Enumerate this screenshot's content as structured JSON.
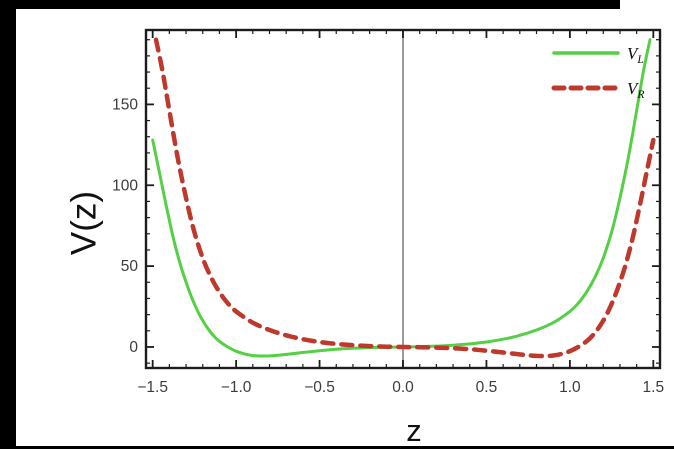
{
  "colors": {
    "background": "#ffffff",
    "letterbox": "#000000",
    "frame": "#1c1c1c",
    "tick_label": "#3d3d3d",
    "zero_line": "#8f8f8f",
    "vl_green": "#55cf45",
    "vr_red": "#be382c"
  },
  "chart_data": {
    "type": "line",
    "title": "",
    "xlabel": "z",
    "ylabel": "V(z)",
    "xlim": [
      -1.54,
      1.54
    ],
    "ylim": [
      -13,
      196
    ],
    "x_ticks": [
      -1.5,
      -1.0,
      -0.5,
      0.0,
      0.5,
      1.0,
      1.5
    ],
    "x_tick_labels": [
      "−1.5",
      "−1.0",
      "−0.5",
      "0.0",
      "0.5",
      "1.0",
      "1.5"
    ],
    "y_ticks": [
      0,
      50,
      100,
      150
    ],
    "y_tick_labels": [
      "0",
      "50",
      "100",
      "150"
    ],
    "x_minor_step": 0.1,
    "y_minor_step": 10,
    "grid": false,
    "frame": true,
    "zero_axis_line_x": 0.0,
    "legend_position": "top-right",
    "series": [
      {
        "name": "V_L",
        "label_main": "V",
        "label_sub": "L",
        "color": "#55cf45",
        "style": "solid",
        "points": [
          [
            -1.5,
            128
          ],
          [
            -1.46,
            108
          ],
          [
            -1.42,
            88
          ],
          [
            -1.38,
            69
          ],
          [
            -1.34,
            53
          ],
          [
            -1.3,
            40
          ],
          [
            -1.26,
            29
          ],
          [
            -1.22,
            20
          ],
          [
            -1.18,
            13
          ],
          [
            -1.14,
            7.5
          ],
          [
            -1.1,
            3.5
          ],
          [
            -1.05,
            0
          ],
          [
            -1.0,
            -2.6
          ],
          [
            -0.95,
            -4.3
          ],
          [
            -0.9,
            -5.3
          ],
          [
            -0.85,
            -5.6
          ],
          [
            -0.8,
            -5.5
          ],
          [
            -0.75,
            -5.1
          ],
          [
            -0.7,
            -4.6
          ],
          [
            -0.6,
            -3.4
          ],
          [
            -0.5,
            -2.3
          ],
          [
            -0.4,
            -1.4
          ],
          [
            -0.3,
            -0.8
          ],
          [
            -0.2,
            -0.4
          ],
          [
            -0.1,
            -0.15
          ],
          [
            0,
            0
          ],
          [
            0.1,
            0.2
          ],
          [
            0.2,
            0.55
          ],
          [
            0.3,
            1.1
          ],
          [
            0.4,
            1.9
          ],
          [
            0.5,
            3.1
          ],
          [
            0.6,
            4.8
          ],
          [
            0.7,
            7.2
          ],
          [
            0.8,
            10.5
          ],
          [
            0.9,
            15
          ],
          [
            1.0,
            22
          ],
          [
            1.05,
            27
          ],
          [
            1.1,
            34
          ],
          [
            1.15,
            43
          ],
          [
            1.2,
            55
          ],
          [
            1.25,
            71
          ],
          [
            1.3,
            92
          ],
          [
            1.35,
            117
          ],
          [
            1.4,
            146
          ],
          [
            1.44,
            170
          ],
          [
            1.48,
            190
          ]
        ]
      },
      {
        "name": "V_R",
        "label_main": "V",
        "label_sub": "R",
        "color": "#be382c",
        "style": "dashed",
        "points": [
          [
            -1.48,
            190
          ],
          [
            -1.44,
            170
          ],
          [
            -1.4,
            146
          ],
          [
            -1.35,
            117
          ],
          [
            -1.3,
            92
          ],
          [
            -1.25,
            71
          ],
          [
            -1.2,
            55
          ],
          [
            -1.15,
            43
          ],
          [
            -1.1,
            34
          ],
          [
            -1.05,
            27
          ],
          [
            -1.0,
            22
          ],
          [
            -0.9,
            15
          ],
          [
            -0.8,
            10.5
          ],
          [
            -0.7,
            7.2
          ],
          [
            -0.6,
            4.8
          ],
          [
            -0.5,
            3.1
          ],
          [
            -0.4,
            1.9
          ],
          [
            -0.3,
            1.1
          ],
          [
            -0.2,
            0.55
          ],
          [
            -0.1,
            0.2
          ],
          [
            0,
            0
          ],
          [
            0.1,
            -0.15
          ],
          [
            0.2,
            -0.4
          ],
          [
            0.3,
            -0.8
          ],
          [
            0.4,
            -1.4
          ],
          [
            0.5,
            -2.3
          ],
          [
            0.6,
            -3.4
          ],
          [
            0.7,
            -4.6
          ],
          [
            0.75,
            -5.1
          ],
          [
            0.8,
            -5.5
          ],
          [
            0.85,
            -5.6
          ],
          [
            0.9,
            -5.3
          ],
          [
            0.95,
            -4.3
          ],
          [
            1.0,
            -2.6
          ],
          [
            1.05,
            0
          ],
          [
            1.1,
            3.5
          ],
          [
            1.14,
            7.5
          ],
          [
            1.18,
            13
          ],
          [
            1.22,
            20
          ],
          [
            1.26,
            29
          ],
          [
            1.3,
            40
          ],
          [
            1.34,
            53
          ],
          [
            1.38,
            69
          ],
          [
            1.42,
            88
          ],
          [
            1.46,
            108
          ],
          [
            1.5,
            128
          ]
        ]
      }
    ]
  }
}
